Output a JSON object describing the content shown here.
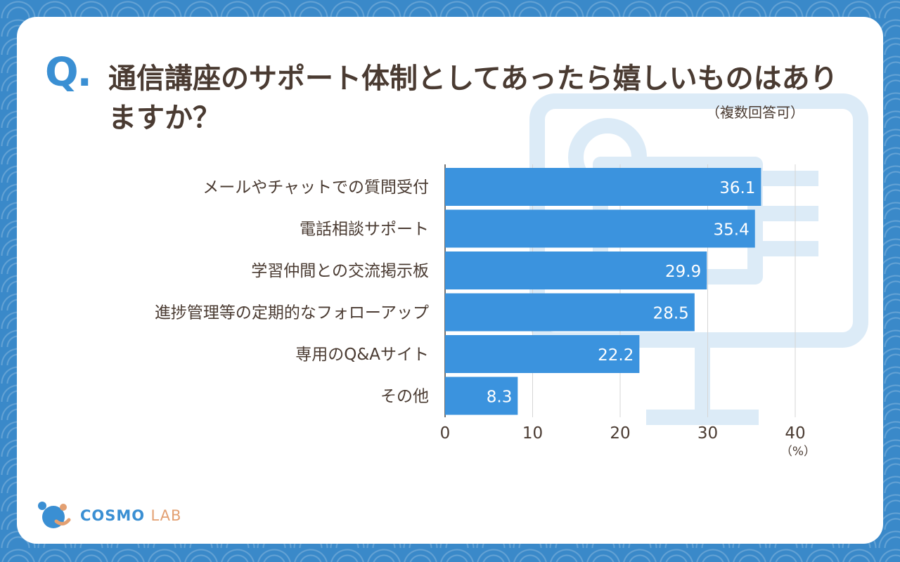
{
  "header": {
    "q_mark": "Q.",
    "title": "通信講座のサポート体制としてあったら嬉しいものはありますか？",
    "note": "（複数回答可）"
  },
  "chart_data": {
    "type": "bar",
    "orientation": "horizontal",
    "categories": [
      "メールやチャットでの質問受付",
      "電話相談サポート",
      "学習仲間との交流掲示板",
      "進捗管理等の定期的なフォローアップ",
      "専用のQ&Aサイト",
      "その他"
    ],
    "values": [
      36.1,
      35.4,
      29.9,
      28.5,
      22.2,
      8.3
    ],
    "xlim": [
      0,
      40
    ],
    "xticks": [
      "0",
      "10",
      "20",
      "30",
      "40"
    ],
    "unit": "（%）",
    "grid": true,
    "bar_color": "#3b93de"
  },
  "logo": {
    "name_part1": "COSMO",
    "name_part2": "LAB"
  }
}
